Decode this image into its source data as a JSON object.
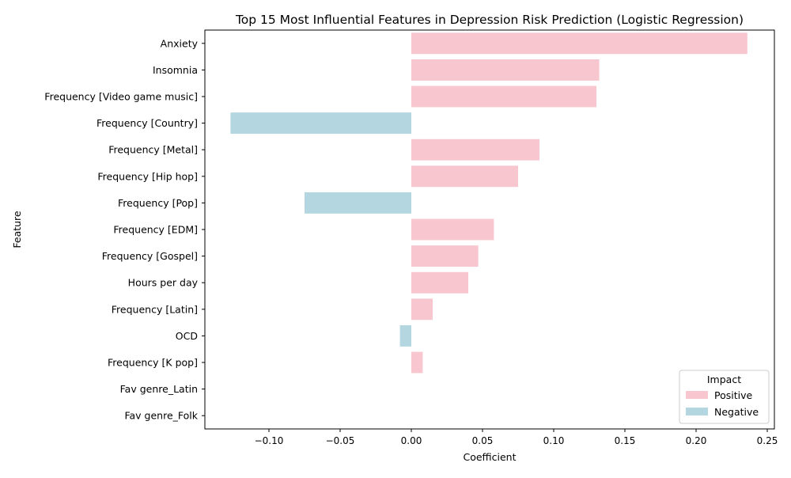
{
  "chart_data": {
    "type": "bar",
    "orientation": "horizontal",
    "title": "Top 15 Most Influential Features in Depression Risk Prediction (Logistic Regression)",
    "xlabel": "Coefficient",
    "ylabel": "Feature",
    "xlim": [
      -0.145,
      0.255
    ],
    "xticks": [
      -0.1,
      -0.05,
      0.0,
      0.05,
      0.1,
      0.15,
      0.2,
      0.25
    ],
    "xtick_labels": [
      "−0.10",
      "−0.05",
      "0.00",
      "0.05",
      "0.10",
      "0.15",
      "0.20",
      "0.25"
    ],
    "grid": false,
    "categories": [
      "Anxiety",
      "Insomnia",
      "Frequency [Video game music]",
      "Frequency [Country]",
      "Frequency [Metal]",
      "Frequency [Hip hop]",
      "Frequency [Pop]",
      "Frequency [EDM]",
      "Frequency [Gospel]",
      "Hours per day",
      "Frequency [Latin]",
      "OCD",
      "Frequency [K pop]",
      "Fav genre_Latin",
      "Fav genre_Folk"
    ],
    "values": [
      0.236,
      0.132,
      0.13,
      -0.127,
      0.09,
      0.075,
      -0.075,
      0.058,
      0.047,
      0.04,
      0.015,
      -0.008,
      0.008,
      0.0,
      0.0
    ],
    "legend": {
      "title": "Impact",
      "placement": "lower-right",
      "entries": [
        {
          "name": "Positive",
          "color": "#f8c6cf"
        },
        {
          "name": "Negative",
          "color": "#b3d6e1"
        }
      ]
    },
    "colors": {
      "positive": "#f8c6cf",
      "negative": "#b3d6e1"
    }
  }
}
